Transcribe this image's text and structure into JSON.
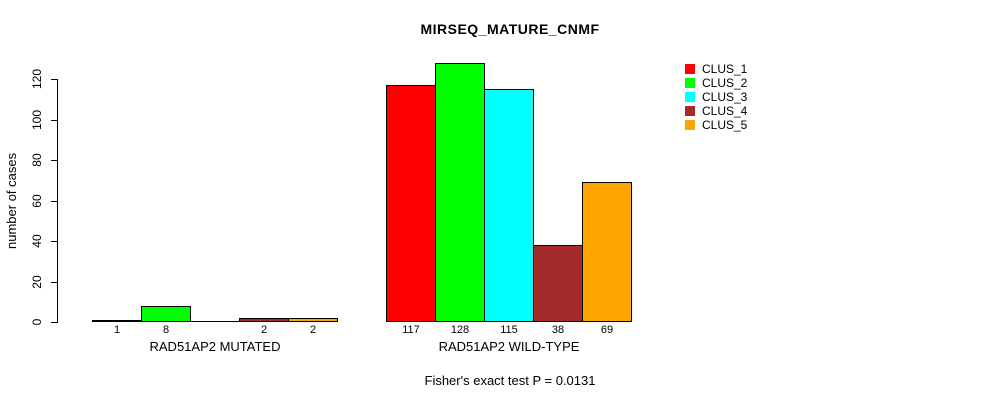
{
  "chart_data": {
    "type": "bar",
    "title": "MIRSEQ_MATURE_CNMF",
    "ylabel": "number of cases",
    "xlabel": "",
    "ylim": [
      0,
      120
    ],
    "yticks": [
      0,
      20,
      40,
      60,
      80,
      100,
      120
    ],
    "categories": [
      "RAD51AP2 MUTATED",
      "RAD51AP2 WILD-TYPE"
    ],
    "series": [
      {
        "name": "CLUS_1",
        "color": "#FF0000",
        "values": [
          1,
          117
        ]
      },
      {
        "name": "CLUS_2",
        "color": "#00FF00",
        "values": [
          8,
          128
        ]
      },
      {
        "name": "CLUS_3",
        "color": "#00FFFF",
        "values": [
          0,
          115
        ]
      },
      {
        "name": "CLUS_4",
        "color": "#A52A2A",
        "values": [
          2,
          38
        ]
      },
      {
        "name": "CLUS_5",
        "color": "#FFA500",
        "values": [
          2,
          69
        ]
      }
    ],
    "bar_value_labels": [
      [
        "1",
        "8",
        "",
        "2",
        "2"
      ],
      [
        "117",
        "128",
        "115",
        "38",
        "69"
      ]
    ],
    "annotation": "Fisher's exact test P = 0.0131",
    "legend_position": "top-right",
    "grid": false,
    "axis_color": "#000000",
    "background_color": "#FFFFFF"
  }
}
